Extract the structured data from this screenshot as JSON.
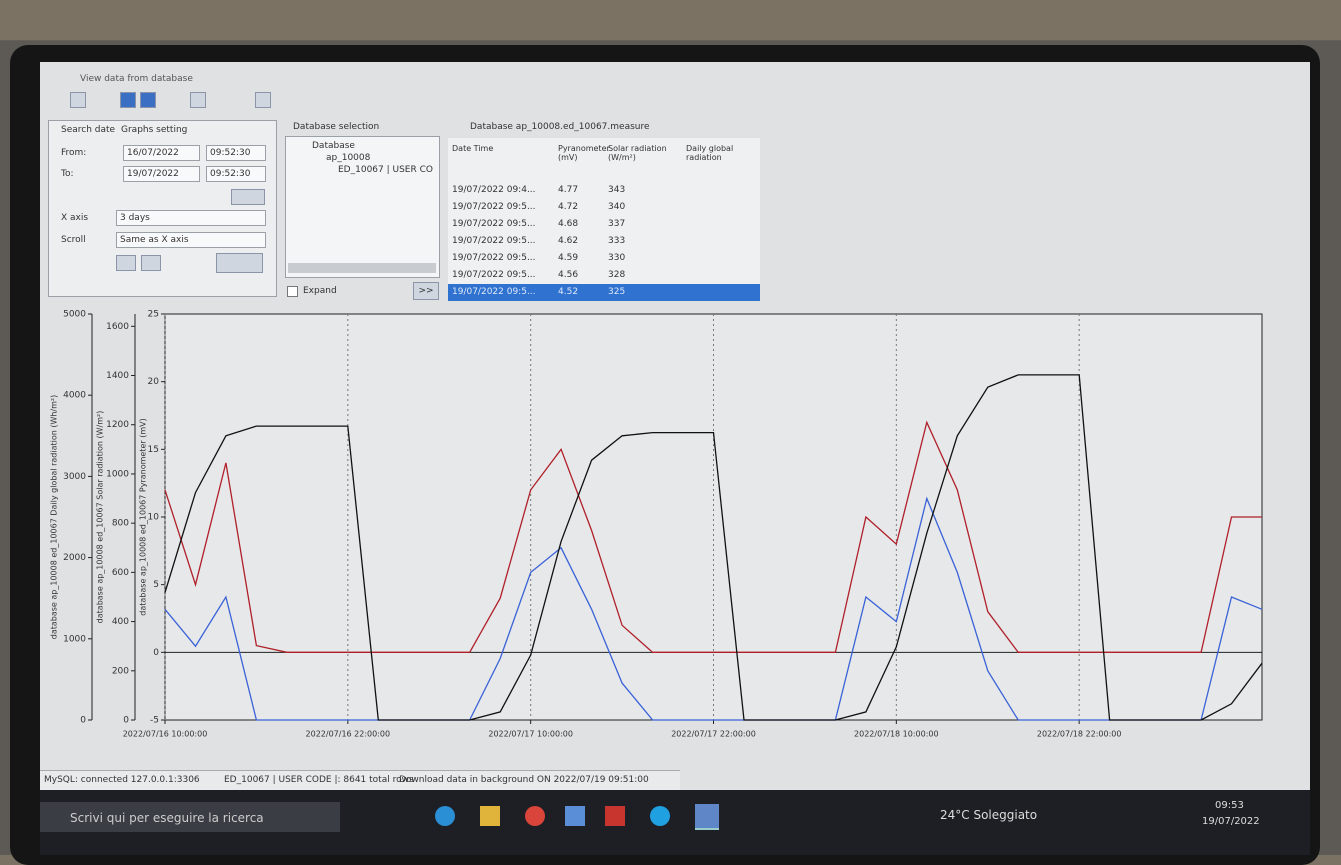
{
  "window": {
    "title": "View data from database"
  },
  "search_panel": {
    "tabs": [
      "Search date",
      "Graphs setting"
    ],
    "from_label": "From:",
    "from_date": "16/07/2022",
    "from_time": "09:52:30",
    "to_label": "To:",
    "to_date": "19/07/2022",
    "to_time": "09:52:30",
    "x_axis_label": "X axis",
    "x_axis_value": "3 days",
    "scroll_label": "Scroll",
    "scroll_value": "Same as X axis"
  },
  "database_panel": {
    "title": "Database selection",
    "tree": [
      "Database",
      "ap_10008",
      "ED_10067 | USER CO"
    ],
    "expand": "Expand",
    "button": ">>"
  },
  "table": {
    "title": "Database ap_10008.ed_10067.measure",
    "columns": [
      "Date Time",
      "Pyranometer (mV)",
      "Solar radiation (W/m²)",
      "Daily global radiation"
    ],
    "rows": [
      [
        "19/07/2022 09:4...",
        4.77,
        343
      ],
      [
        "19/07/2022 09:5...",
        4.72,
        340
      ],
      [
        "19/07/2022 09:5...",
        4.68,
        337
      ],
      [
        "19/07/2022 09:5...",
        4.62,
        333
      ],
      [
        "19/07/2022 09:5...",
        4.59,
        330
      ],
      [
        "19/07/2022 09:5...",
        4.56,
        328
      ],
      [
        "19/07/2022 09:5...",
        4.52,
        325
      ]
    ]
  },
  "chart_data": {
    "type": "line",
    "y_label": "database ap_10008 ed_10067 Pyranometer (mV)",
    "y2_label": "database ap_10008 ed_10067 Solar radiation (W/m²)",
    "y3_label": "database ap_10008 ed_10067 Daily global radiation (Wh/m²)",
    "x": [
      0,
      2,
      4,
      6,
      8,
      10,
      12,
      14,
      16,
      18,
      20,
      22,
      24,
      26,
      28,
      30,
      32,
      34,
      36,
      38,
      40,
      42,
      44,
      46,
      48,
      50,
      52,
      54,
      56,
      58,
      60,
      62,
      64,
      66,
      68,
      70,
      72
    ],
    "xlim": [
      0,
      72
    ],
    "xticks": [
      {
        "value": 0,
        "label": "2022/07/16 10:00:00"
      },
      {
        "value": 12,
        "label": "2022/07/16 22:00:00"
      },
      {
        "value": 24,
        "label": "2022/07/17 10:00:00"
      },
      {
        "value": 36,
        "label": "2022/07/17 22:00:00"
      },
      {
        "value": 48,
        "label": "2022/07/18 10:00:00"
      },
      {
        "value": 60,
        "label": "2022/07/18 22:00:00"
      }
    ],
    "ylim": [
      -5,
      25
    ],
    "yticks": [
      -5,
      0,
      5,
      10,
      15,
      20,
      25
    ],
    "y2lim": [
      0,
      1650
    ],
    "y2ticks": [
      0,
      200,
      400,
      600,
      800,
      1000,
      1200,
      1400,
      1600
    ],
    "y3lim": [
      0,
      5000
    ],
    "y3ticks": [
      0,
      1000,
      2000,
      3000,
      4000,
      5000
    ],
    "grid": true,
    "series": [
      {
        "color": "#b0202a",
        "axis": "y",
        "values": [
          12,
          5,
          14,
          0.5,
          0,
          0,
          0,
          0,
          0,
          0,
          0,
          4,
          12,
          15,
          9,
          2,
          0,
          0,
          0,
          0,
          0,
          0,
          0,
          10,
          8,
          17,
          12,
          3,
          0,
          0,
          0,
          0,
          0,
          0,
          0,
          10,
          10
        ]
      },
      {
        "color": "#3a62d8",
        "axis": "y2",
        "values": [
          450,
          300,
          500,
          0,
          0,
          0,
          0,
          0,
          0,
          0,
          0,
          250,
          600,
          700,
          450,
          150,
          0,
          0,
          0,
          0,
          0,
          0,
          0,
          500,
          400,
          900,
          600,
          200,
          0,
          0,
          0,
          0,
          0,
          0,
          0,
          500,
          450
        ]
      },
      {
        "color": "#111111",
        "axis": "y3",
        "values": [
          1570,
          2800,
          3500,
          3620,
          3620,
          3620,
          3620,
          0,
          0,
          0,
          0,
          100,
          800,
          2200,
          3200,
          3500,
          3540,
          3540,
          3540,
          0,
          0,
          0,
          0,
          100,
          900,
          2300,
          3500,
          4100,
          4250,
          4250,
          4250,
          0,
          0,
          0,
          0,
          200,
          700
        ]
      }
    ]
  },
  "status_bar": [
    "MySQL: connected 127.0.0.1:3306",
    "ED_10067 | USER CODE |: 8641 total rows",
    "Download data in background ON  2022/07/19 09:51:00"
  ],
  "taskbar": {
    "search": "Scrivi qui per eseguire la ricerca",
    "weather": "24°C Soleggiato",
    "time": "09:53",
    "date": "19/07/2022"
  }
}
